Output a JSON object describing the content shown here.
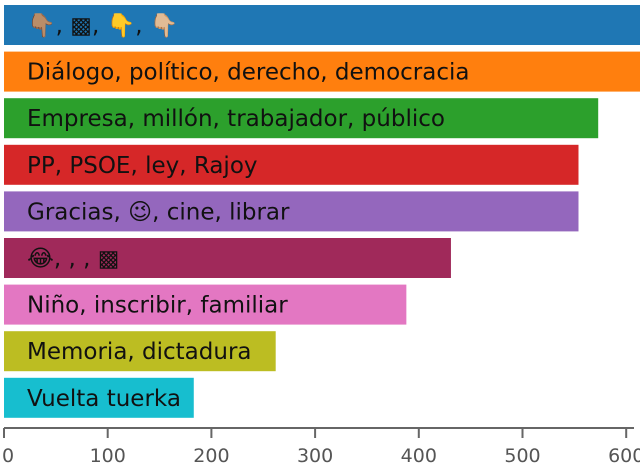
{
  "chart_data": {
    "type": "bar",
    "orientation": "horizontal",
    "title": "",
    "xlabel": "",
    "ylabel": "",
    "xlim": [
      0,
      600
    ],
    "xticks": [
      0,
      100,
      200,
      300,
      400,
      500,
      600
    ],
    "grid": false,
    "legend": "none",
    "bars": [
      {
        "label": "👇🏽, ▩, 👇, 👇🏼",
        "value": 628,
        "color": "#1f77b4"
      },
      {
        "label": "Diálogo, político, derecho, democracia",
        "value": 626,
        "color": "#ff7f0e"
      },
      {
        "label": "Empresa, millón, trabajador, público",
        "value": 573,
        "color": "#2ca02c"
      },
      {
        "label": "PP, PSOE, ley, Rajoy",
        "value": 554,
        "color": "#d62728"
      },
      {
        "label": "Gracias, 😉, cine, librar",
        "value": 554,
        "color": "#9467bd"
      },
      {
        "label": "😂, , , ▩",
        "value": 431,
        "color": "#a0295a"
      },
      {
        "label": "Niño, inscribir, familiar",
        "value": 388,
        "color": "#e377c2"
      },
      {
        "label": "Memoria, dictadura",
        "value": 262,
        "color": "#bcbd22"
      },
      {
        "label": "Vuelta tuerka",
        "value": 183,
        "color": "#17becf"
      }
    ]
  }
}
